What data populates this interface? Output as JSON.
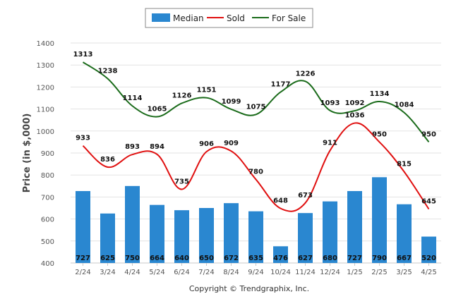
{
  "chart_data": {
    "type": "bar",
    "categories": [
      "2/24",
      "3/24",
      "4/24",
      "5/24",
      "6/24",
      "7/24",
      "8/24",
      "9/24",
      "10/24",
      "11/24",
      "12/24",
      "1/25",
      "2/25",
      "3/25",
      "4/25"
    ],
    "series": [
      {
        "name": "Median",
        "type": "bar",
        "color": "#2a87d0",
        "values": [
          727,
          625,
          750,
          664,
          640,
          650,
          672,
          635,
          476,
          627,
          680,
          727,
          790,
          667,
          520
        ]
      },
      {
        "name": "Sold",
        "type": "line",
        "color": "#e01010",
        "values": [
          933,
          836,
          893,
          894,
          735,
          906,
          909,
          780,
          648,
          673,
          911,
          1036,
          950,
          815,
          645
        ]
      },
      {
        "name": "For Sale",
        "type": "line",
        "color": "#1a6b1a",
        "values": [
          1313,
          1238,
          1114,
          1065,
          1126,
          1151,
          1099,
          1075,
          1177,
          1226,
          1093,
          1092,
          1134,
          1084,
          950
        ]
      }
    ],
    "ylabel": "Price (in $,000)",
    "ylim": [
      400,
      1400
    ],
    "yticks": [
      400,
      500,
      600,
      700,
      800,
      900,
      1000,
      1100,
      1200,
      1300,
      1400
    ],
    "grid": true,
    "legend_position": "top-center"
  },
  "copyright": "Copyright © Trendgraphix, Inc."
}
